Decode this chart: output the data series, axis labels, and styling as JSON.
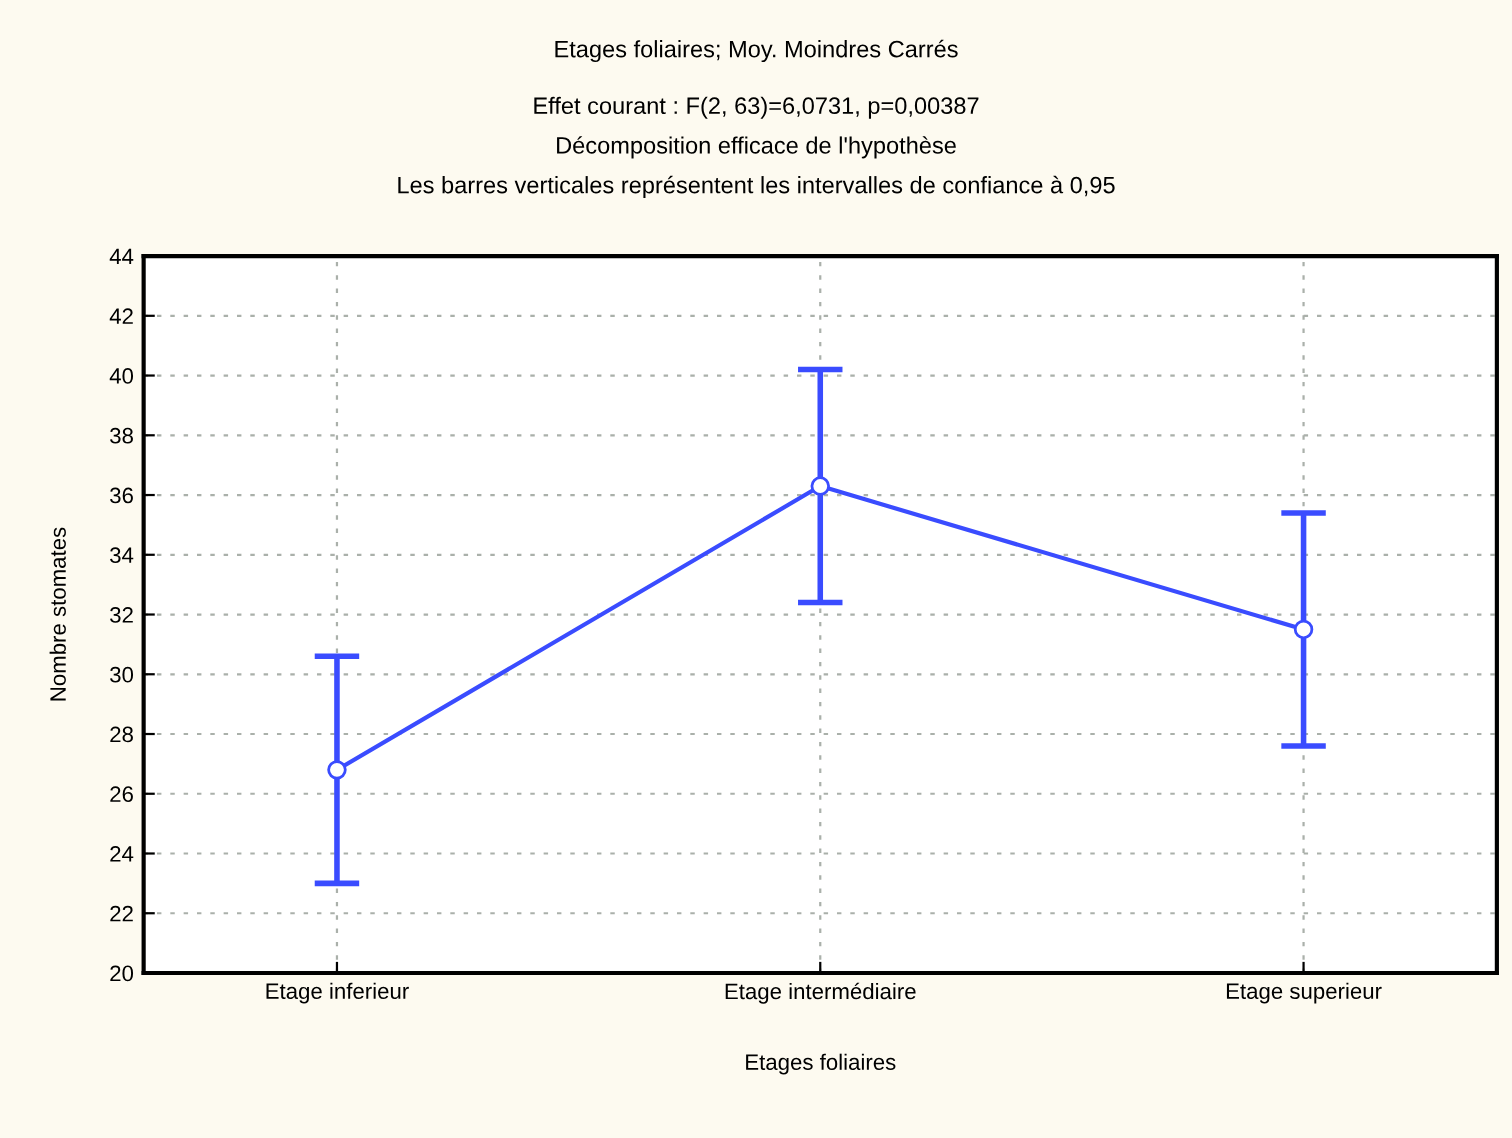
{
  "chart_data": {
    "type": "line",
    "title": "Etages foliaires; Moy. Moindres Carrés",
    "subtitle": "Effet courant : F(2, 63)=6,0731, p=0,00387\nDécomposition efficace de l'hypothèse\nLes barres verticales représentent les intervalles de confiance à 0,95",
    "xlabel": "Etages foliaires",
    "ylabel": "Nombre stomates",
    "categories": [
      "Etage inferieur",
      "Etage intermédiaire",
      "Etage superieur"
    ],
    "series": [
      {
        "color": "#3a4cff",
        "values": [
          26.8,
          36.3,
          31.5
        ],
        "errors": [
          3.8,
          3.9,
          3.9
        ]
      }
    ],
    "ylim": [
      20,
      44
    ],
    "yticks": [
      20,
      22,
      24,
      26,
      28,
      30,
      32,
      34,
      36,
      38,
      40,
      42,
      44
    ],
    "grid": true,
    "marker": "circle",
    "line_style": "solid"
  }
}
